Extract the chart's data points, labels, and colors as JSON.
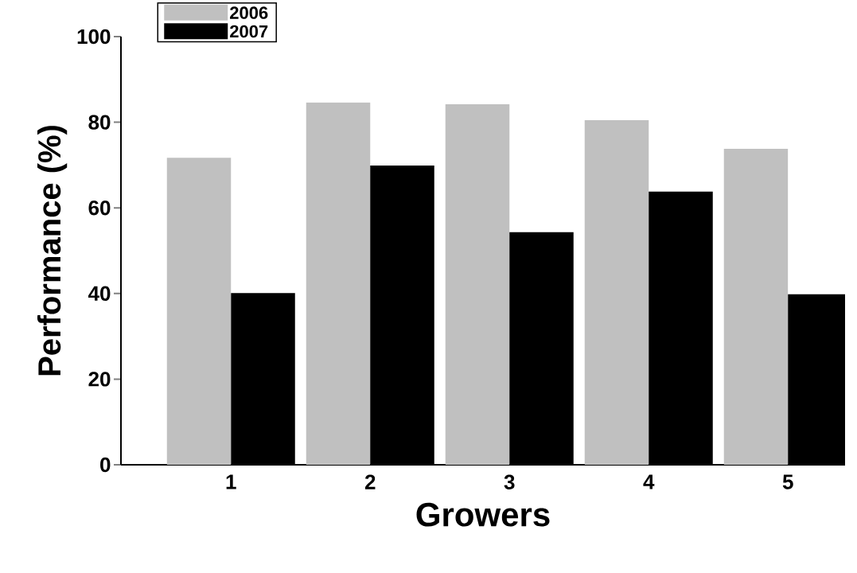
{
  "chart_data": {
    "type": "bar",
    "xlabel": "Growers",
    "ylabel": "Performance (%)",
    "categories": [
      "1",
      "2",
      "3",
      "4",
      "5"
    ],
    "series": [
      {
        "name": "2006",
        "color": "#c0c0c0",
        "values": [
          71.7,
          84.6,
          84.2,
          80.5,
          73.8
        ]
      },
      {
        "name": "2007",
        "color": "#000000",
        "values": [
          40.1,
          69.9,
          54.3,
          63.8,
          39.8
        ]
      }
    ],
    "ylim": [
      0,
      100
    ],
    "yticks": [
      0,
      20,
      40,
      60,
      80,
      100
    ],
    "legend": "top left"
  }
}
